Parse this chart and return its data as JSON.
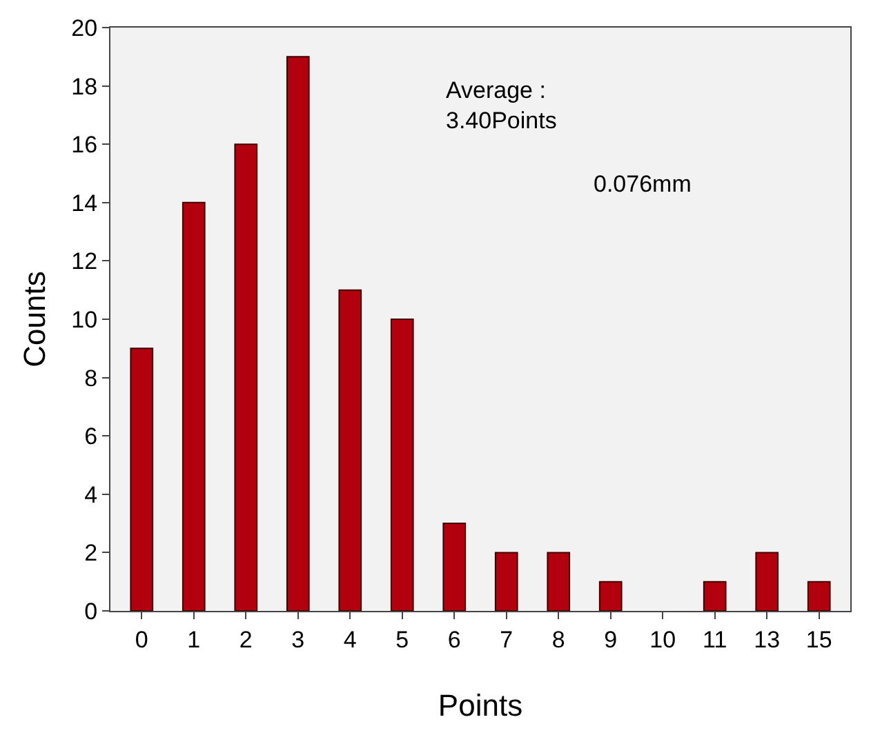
{
  "chart_data": {
    "type": "bar",
    "xlabel": "Points",
    "ylabel": "Counts",
    "categories": [
      "0",
      "1",
      "2",
      "3",
      "4",
      "5",
      "6",
      "7",
      "8",
      "9",
      "10",
      "11",
      "13",
      "15"
    ],
    "values": [
      9,
      14,
      16,
      19,
      11,
      10,
      3,
      2,
      2,
      1,
      0,
      1,
      2,
      1
    ],
    "color": "#b3000f",
    "ylim": [
      0,
      20
    ],
    "yticks": [
      0,
      2,
      4,
      6,
      8,
      10,
      12,
      14,
      16,
      18,
      20
    ],
    "grid": false,
    "annotations": [
      "Average :\n3.40Points",
      "0.076mm"
    ]
  }
}
